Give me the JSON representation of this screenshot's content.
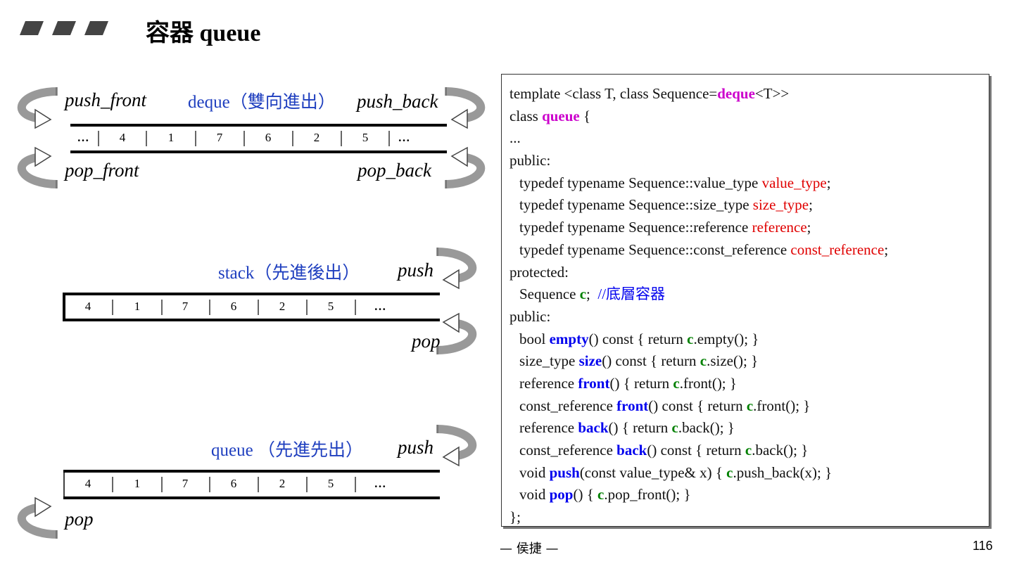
{
  "header": {
    "title": "容器 queue"
  },
  "deque": {
    "label": "deque（雙向進出）",
    "push_front": "push_front",
    "push_back": "push_back",
    "pop_front": "pop_front",
    "pop_back": "pop_back",
    "cells": [
      "…",
      "4",
      "1",
      "7",
      "6",
      "2",
      "5",
      "…"
    ]
  },
  "stack": {
    "label": "stack（先進後出）",
    "push": "push",
    "pop": "pop",
    "cells": [
      "4",
      "1",
      "7",
      "6",
      "2",
      "5",
      "…"
    ]
  },
  "queue": {
    "label": "queue （先進先出）",
    "push": "push",
    "pop": "pop",
    "cells": [
      "4",
      "1",
      "7",
      "6",
      "2",
      "5",
      "…"
    ]
  },
  "code": {
    "lines": [
      {
        "indent": 0,
        "segments": [
          {
            "text": "template <class T, class Sequence="
          },
          {
            "text": "deque",
            "color": "#cc00cc",
            "bold": true
          },
          {
            "text": "<T>>"
          }
        ]
      },
      {
        "indent": 0,
        "segments": [
          {
            "text": "class "
          },
          {
            "text": "queue",
            "color": "#cc00cc",
            "bold": true
          },
          {
            "text": " {"
          }
        ]
      },
      {
        "indent": 0,
        "segments": [
          {
            "text": "..."
          }
        ]
      },
      {
        "indent": 0,
        "segments": [
          {
            "text": "public:"
          }
        ]
      },
      {
        "indent": 1,
        "segments": [
          {
            "text": "typedef typename Sequence::value_type "
          },
          {
            "text": "value_type",
            "color": "#e00000"
          },
          {
            "text": ";"
          }
        ]
      },
      {
        "indent": 1,
        "segments": [
          {
            "text": "typedef typename Sequence::size_type "
          },
          {
            "text": "size_type",
            "color": "#e00000"
          },
          {
            "text": ";"
          }
        ]
      },
      {
        "indent": 1,
        "segments": [
          {
            "text": "typedef typename Sequence::reference "
          },
          {
            "text": "reference",
            "color": "#e00000"
          },
          {
            "text": ";"
          }
        ]
      },
      {
        "indent": 1,
        "segments": [
          {
            "text": "typedef typename Sequence::const_reference "
          },
          {
            "text": "const_reference",
            "color": "#e00000"
          },
          {
            "text": ";"
          }
        ]
      },
      {
        "indent": 0,
        "segments": [
          {
            "text": "protected:"
          }
        ]
      },
      {
        "indent": 1,
        "segments": [
          {
            "text": "Sequence "
          },
          {
            "text": "c",
            "color": "#008000",
            "bold": true
          },
          {
            "text": ";  "
          },
          {
            "text": "//底層容器",
            "color": "#0000ee"
          }
        ]
      },
      {
        "indent": 0,
        "segments": [
          {
            "text": "public:"
          }
        ]
      },
      {
        "indent": 1,
        "segments": [
          {
            "text": "bool "
          },
          {
            "text": "empty",
            "color": "#0000ee",
            "bold": true
          },
          {
            "text": "() const { return "
          },
          {
            "text": "c",
            "color": "#008000",
            "bold": true
          },
          {
            "text": ".empty(); }"
          }
        ]
      },
      {
        "indent": 1,
        "segments": [
          {
            "text": "size_type "
          },
          {
            "text": "size",
            "color": "#0000ee",
            "bold": true
          },
          {
            "text": "() const { return "
          },
          {
            "text": "c",
            "color": "#008000",
            "bold": true
          },
          {
            "text": ".size(); }"
          }
        ]
      },
      {
        "indent": 1,
        "segments": [
          {
            "text": "reference "
          },
          {
            "text": "front",
            "color": "#0000ee",
            "bold": true
          },
          {
            "text": "() { return "
          },
          {
            "text": "c",
            "color": "#008000",
            "bold": true
          },
          {
            "text": ".front(); }"
          }
        ]
      },
      {
        "indent": 1,
        "segments": [
          {
            "text": "const_reference "
          },
          {
            "text": "front",
            "color": "#0000ee",
            "bold": true
          },
          {
            "text": "() const { return "
          },
          {
            "text": "c",
            "color": "#008000",
            "bold": true
          },
          {
            "text": ".front(); }"
          }
        ]
      },
      {
        "indent": 1,
        "segments": [
          {
            "text": "reference "
          },
          {
            "text": "back",
            "color": "#0000ee",
            "bold": true
          },
          {
            "text": "() { return "
          },
          {
            "text": "c",
            "color": "#008000",
            "bold": true
          },
          {
            "text": ".back(); }"
          }
        ]
      },
      {
        "indent": 1,
        "segments": [
          {
            "text": "const_reference "
          },
          {
            "text": "back",
            "color": "#0000ee",
            "bold": true
          },
          {
            "text": "() const { return "
          },
          {
            "text": "c",
            "color": "#008000",
            "bold": true
          },
          {
            "text": ".back(); }"
          }
        ]
      },
      {
        "indent": 1,
        "segments": [
          {
            "text": "void "
          },
          {
            "text": "push",
            "color": "#0000ee",
            "bold": true
          },
          {
            "text": "(const value_type& x) { "
          },
          {
            "text": "c",
            "color": "#008000",
            "bold": true
          },
          {
            "text": ".push_back(x); }"
          }
        ]
      },
      {
        "indent": 1,
        "segments": [
          {
            "text": "void "
          },
          {
            "text": "pop",
            "color": "#0000ee",
            "bold": true
          },
          {
            "text": "() { "
          },
          {
            "text": "c",
            "color": "#008000",
            "bold": true
          },
          {
            "text": ".pop_front(); }"
          }
        ]
      },
      {
        "indent": 0,
        "segments": [
          {
            "text": "};"
          }
        ]
      }
    ]
  },
  "footer": {
    "author": "— 侯捷 —",
    "page": "116"
  }
}
